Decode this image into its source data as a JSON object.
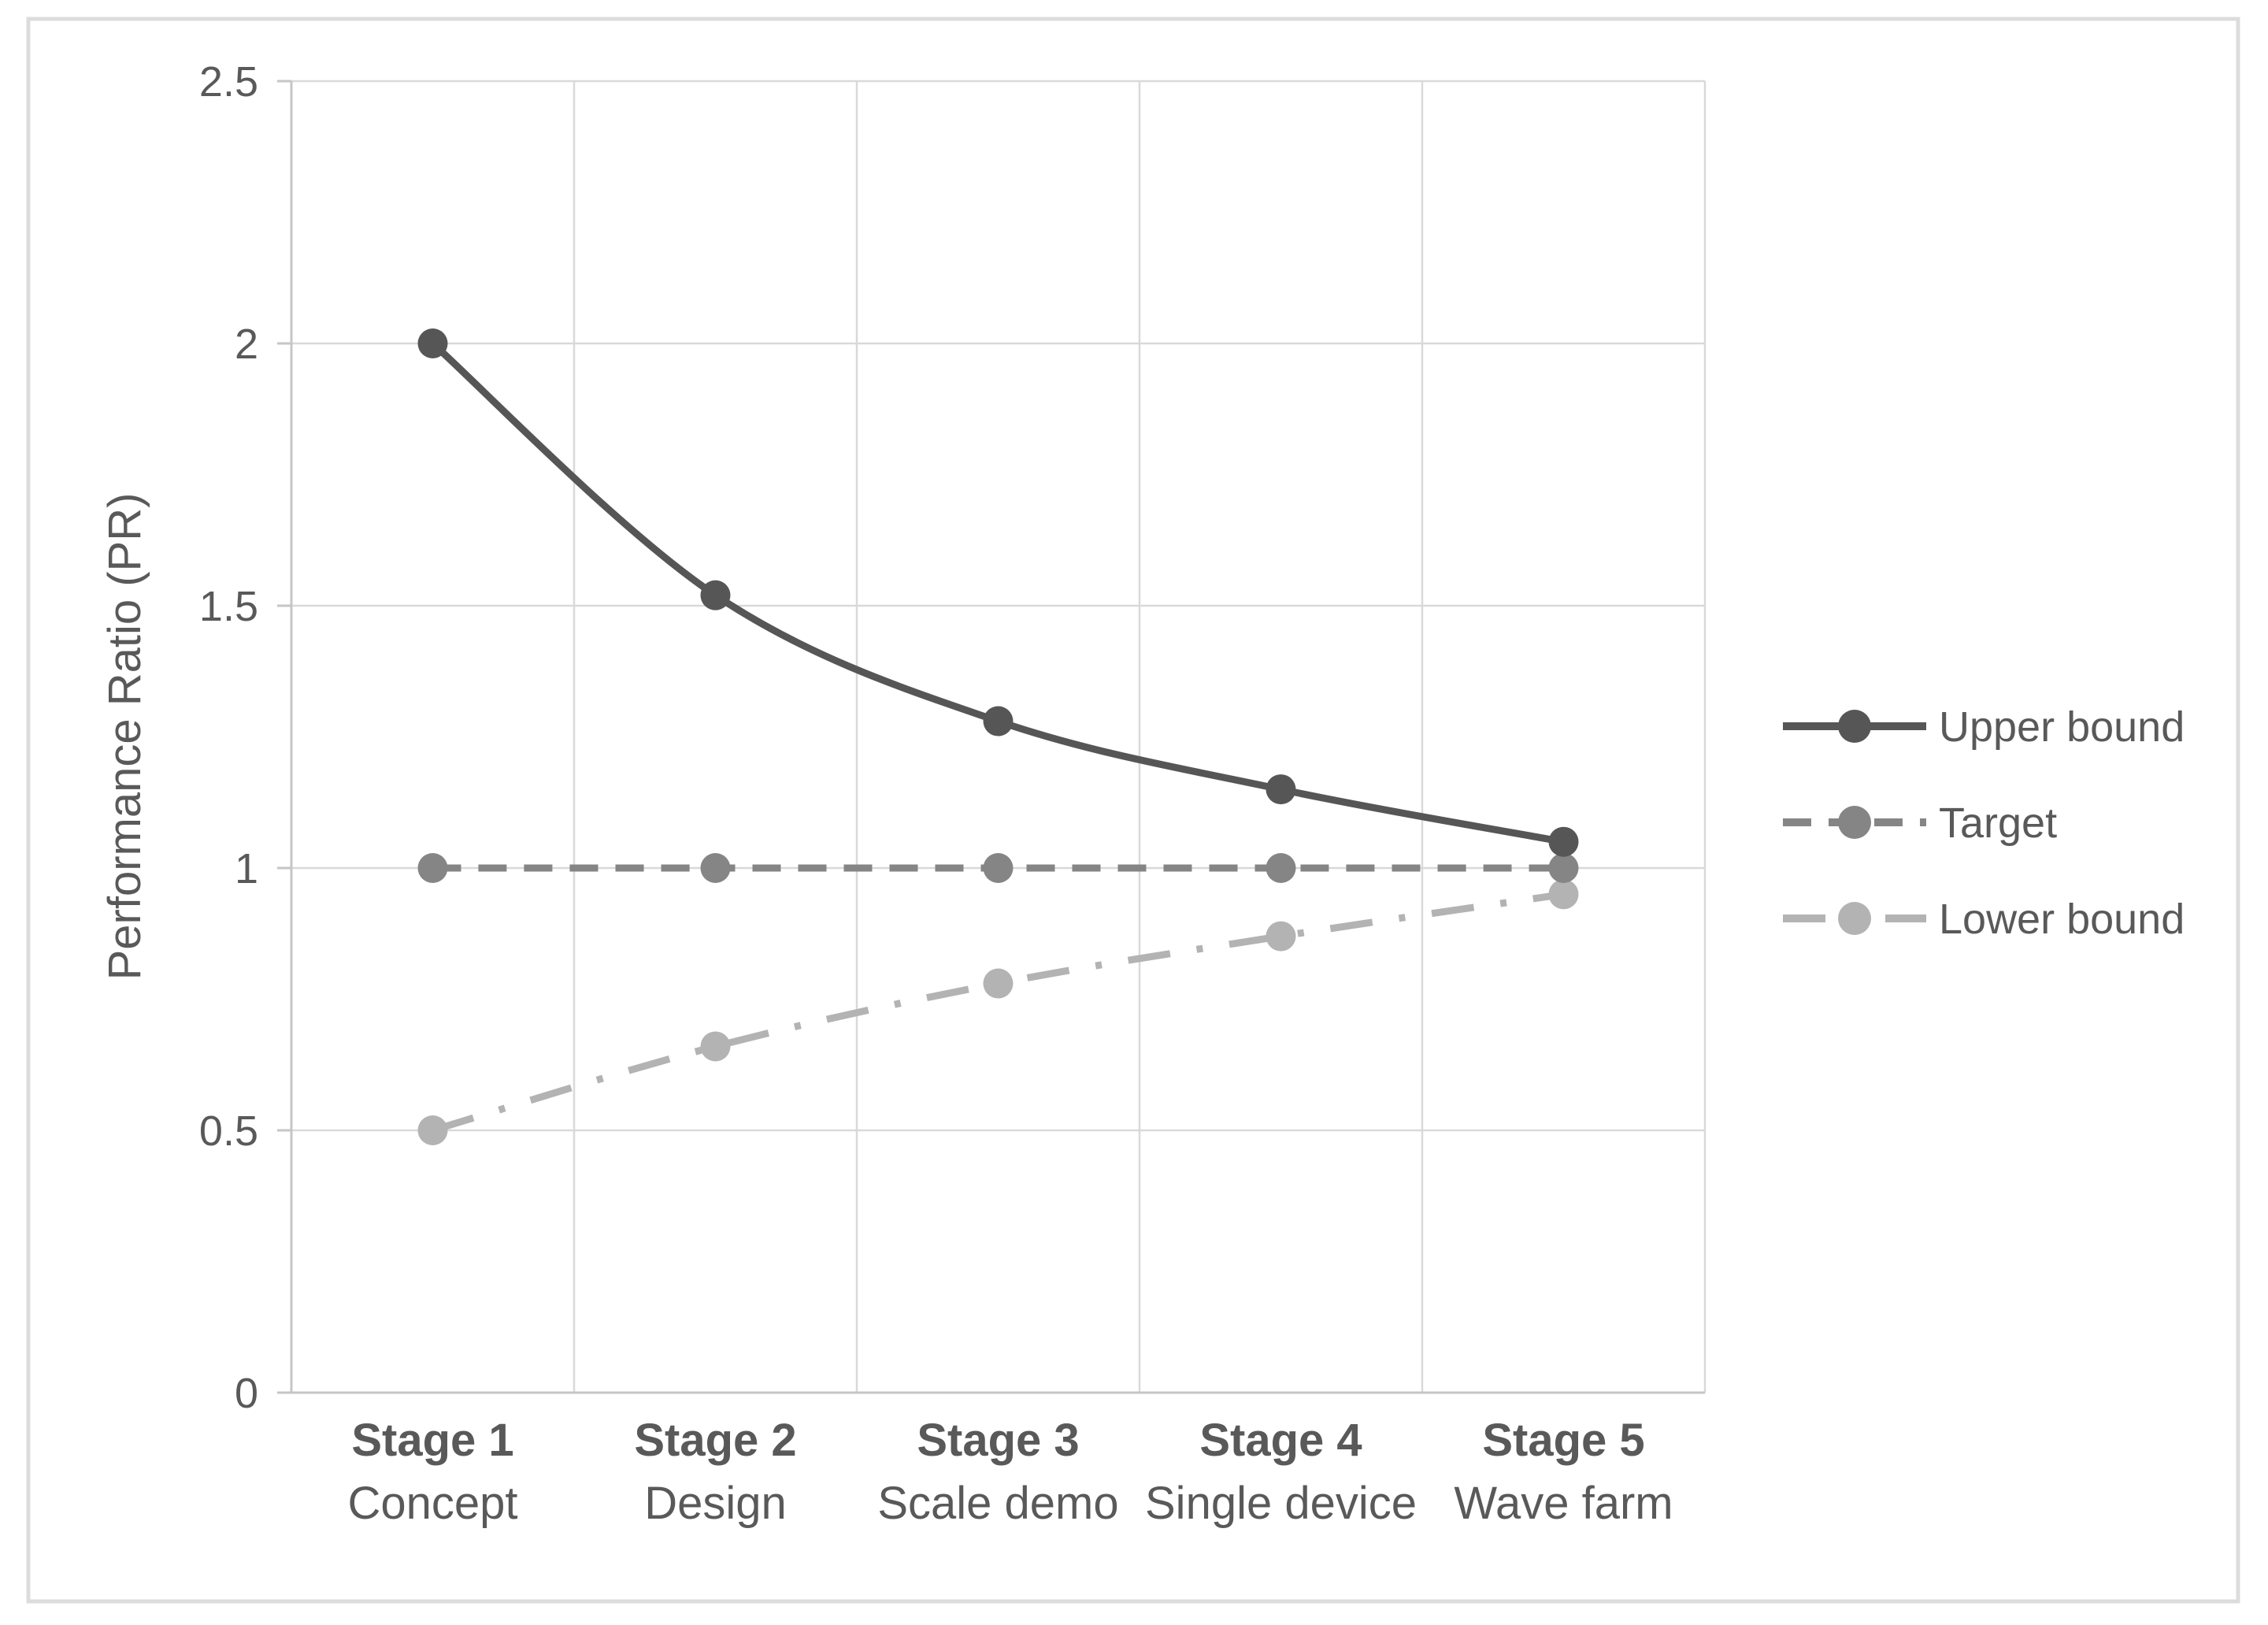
{
  "chart_data": {
    "type": "line",
    "title": "",
    "ylabel": "Performance Ratio (PR)",
    "xlabel": "",
    "ylim": [
      0,
      2.5
    ],
    "ytick_step": 0.5,
    "ytick_labels": [
      "0",
      "0.5",
      "1",
      "1.5",
      "2",
      "2.5"
    ],
    "grid": true,
    "categories": [
      {
        "line1": "Stage 1",
        "line2": "Concept"
      },
      {
        "line1": "Stage 2",
        "line2": "Design"
      },
      {
        "line1": "Stage 3",
        "line2": "Scale demo"
      },
      {
        "line1": "Stage 4",
        "line2": "Single device"
      },
      {
        "line1": "Stage 5",
        "line2": "Wave farm"
      }
    ],
    "series": [
      {
        "name": "Upper bound",
        "values": [
          2.0,
          1.52,
          1.28,
          1.15,
          1.05
        ],
        "color": "#565656",
        "line_style": "solid",
        "marker": "circle"
      },
      {
        "name": "Target",
        "values": [
          1.0,
          1.0,
          1.0,
          1.0,
          1.0
        ],
        "color": "#858585",
        "line_style": "dashed",
        "marker": "circle"
      },
      {
        "name": "Lower bound",
        "values": [
          0.5,
          0.66,
          0.78,
          0.87,
          0.95
        ],
        "color": "#b3b3b3",
        "line_style": "dashdot",
        "marker": "circle"
      }
    ],
    "legend": {
      "position": "right",
      "labels": [
        "Upper bound",
        "Target",
        "Lower bound"
      ]
    },
    "colors": {
      "gridline": "#d9d9d9",
      "axis": "#c6c6c6",
      "text": "#595959",
      "frame_border": "#dcdcdc",
      "background": "#ffffff"
    }
  }
}
